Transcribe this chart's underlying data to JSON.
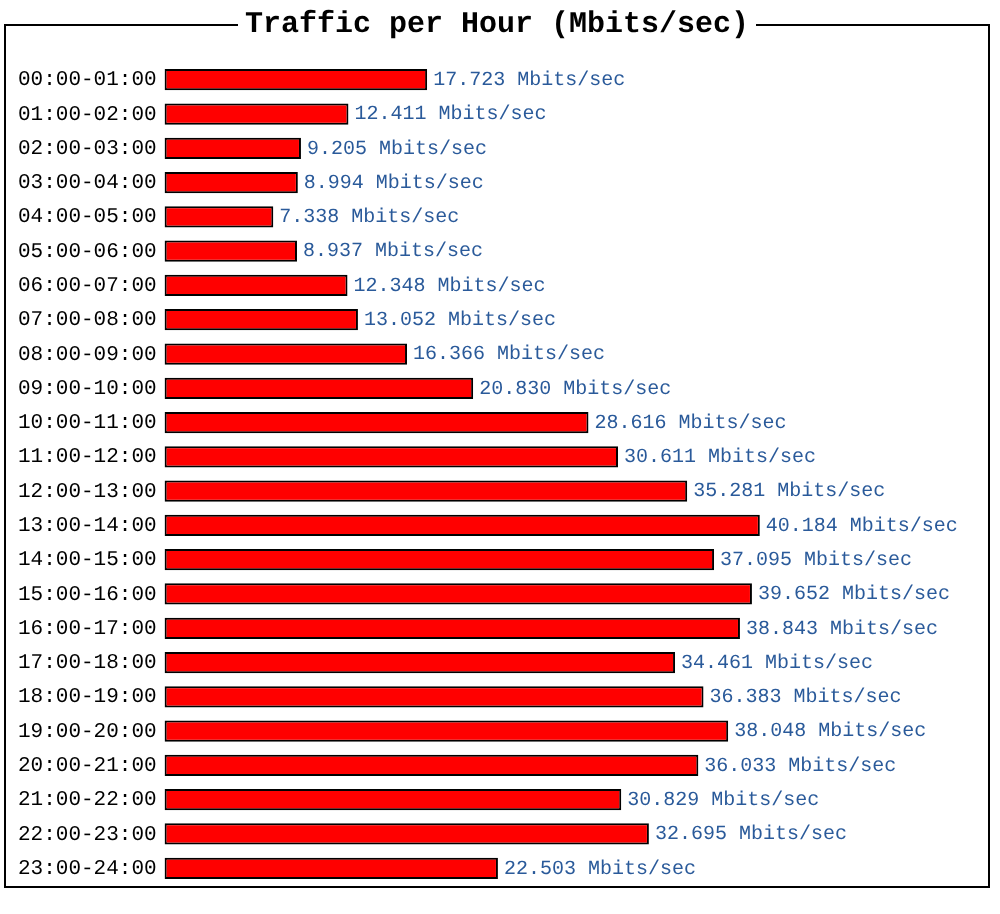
{
  "chart_data": {
    "type": "bar",
    "orientation": "horizontal",
    "title": "Traffic per Hour (Mbits/sec)",
    "categories": [
      "00:00-01:00",
      "01:00-02:00",
      "02:00-03:00",
      "03:00-04:00",
      "04:00-05:00",
      "05:00-06:00",
      "06:00-07:00",
      "07:00-08:00",
      "08:00-09:00",
      "09:00-10:00",
      "10:00-11:00",
      "11:00-12:00",
      "12:00-13:00",
      "13:00-14:00",
      "14:00-15:00",
      "15:00-16:00",
      "16:00-17:00",
      "17:00-18:00",
      "18:00-19:00",
      "19:00-20:00",
      "20:00-21:00",
      "21:00-22:00",
      "22:00-23:00",
      "23:00-24:00"
    ],
    "values": [
      17.723,
      12.411,
      9.205,
      8.994,
      7.338,
      8.937,
      12.348,
      13.052,
      16.366,
      20.83,
      28.616,
      30.611,
      35.281,
      40.184,
      37.095,
      39.652,
      38.843,
      34.461,
      36.383,
      38.048,
      36.033,
      30.829,
      32.695,
      22.503
    ],
    "value_labels": [
      "17.723 Mbits/sec",
      "12.411 Mbits/sec",
      "9.205 Mbits/sec",
      "8.994 Mbits/sec",
      "7.338 Mbits/sec",
      "8.937 Mbits/sec",
      "12.348 Mbits/sec",
      "13.052 Mbits/sec",
      "16.366 Mbits/sec",
      "20.830 Mbits/sec",
      "28.616 Mbits/sec",
      "30.611 Mbits/sec",
      "35.281 Mbits/sec",
      "40.184 Mbits/sec",
      "37.095 Mbits/sec",
      "39.652 Mbits/sec",
      "38.843 Mbits/sec",
      "34.461 Mbits/sec",
      "36.383 Mbits/sec",
      "38.048 Mbits/sec",
      "36.033 Mbits/sec",
      "30.829 Mbits/sec",
      "32.695 Mbits/sec",
      "22.503 Mbits/sec"
    ],
    "color": "#ff0000",
    "grid": false,
    "legend": false
  }
}
